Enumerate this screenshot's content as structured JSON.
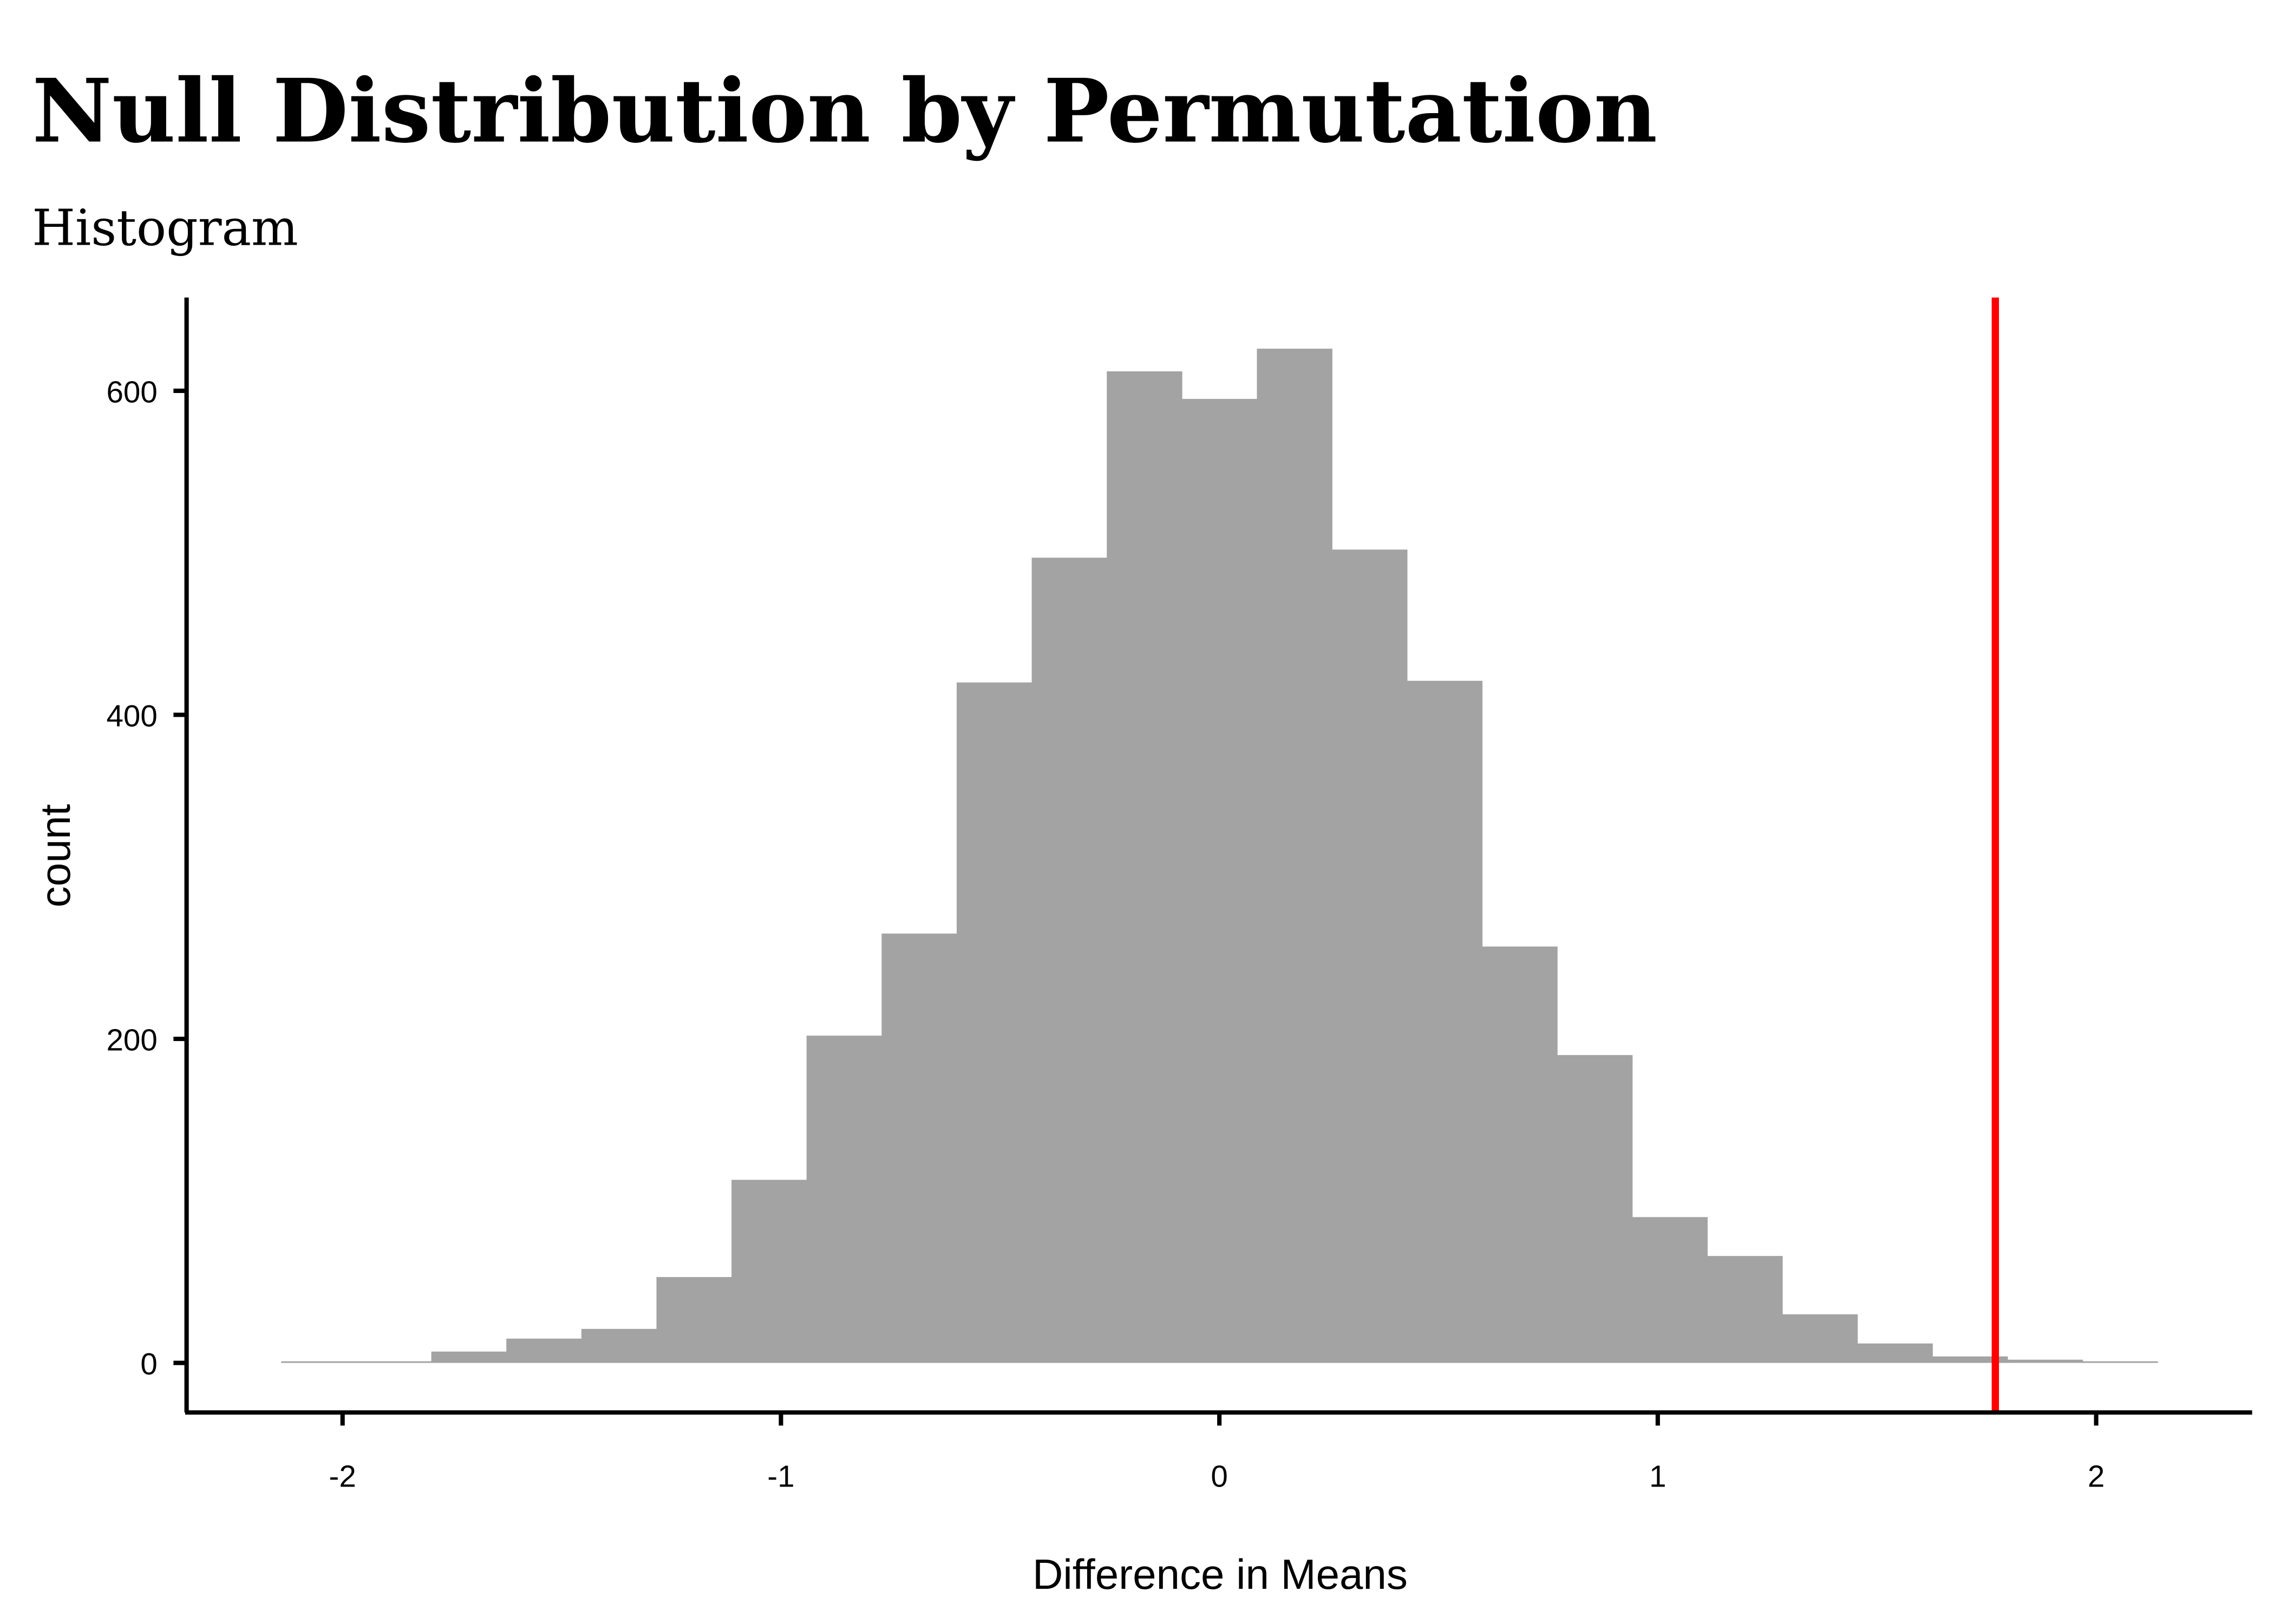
{
  "chart_data": {
    "type": "bar",
    "subtype": "histogram",
    "title": "Null Distribution by Permutation",
    "subtitle": "Histogram",
    "xlabel": "Difference in Means",
    "ylabel": "count",
    "xlim": [
      -2.35,
      2.35
    ],
    "ylim": [
      -30,
      655
    ],
    "xticks": [
      -2,
      -1,
      0,
      1,
      2
    ],
    "xtick_labels": [
      "-2",
      "-1",
      "0",
      "1",
      "2"
    ],
    "yticks": [
      0,
      200,
      400,
      600
    ],
    "ytick_labels": [
      "0",
      "200",
      "400",
      "600"
    ],
    "bin_start": -2.14,
    "bin_width": 0.1712,
    "counts": [
      1,
      1,
      7,
      15,
      21,
      53,
      113,
      202,
      265,
      420,
      497,
      612,
      595,
      626,
      502,
      421,
      257,
      190,
      90,
      66,
      30,
      12,
      4,
      2,
      1
    ],
    "bar_color": "#a3a3a3",
    "observed_line": {
      "x": 1.77,
      "color": "#ff0000"
    },
    "grid": false
  }
}
